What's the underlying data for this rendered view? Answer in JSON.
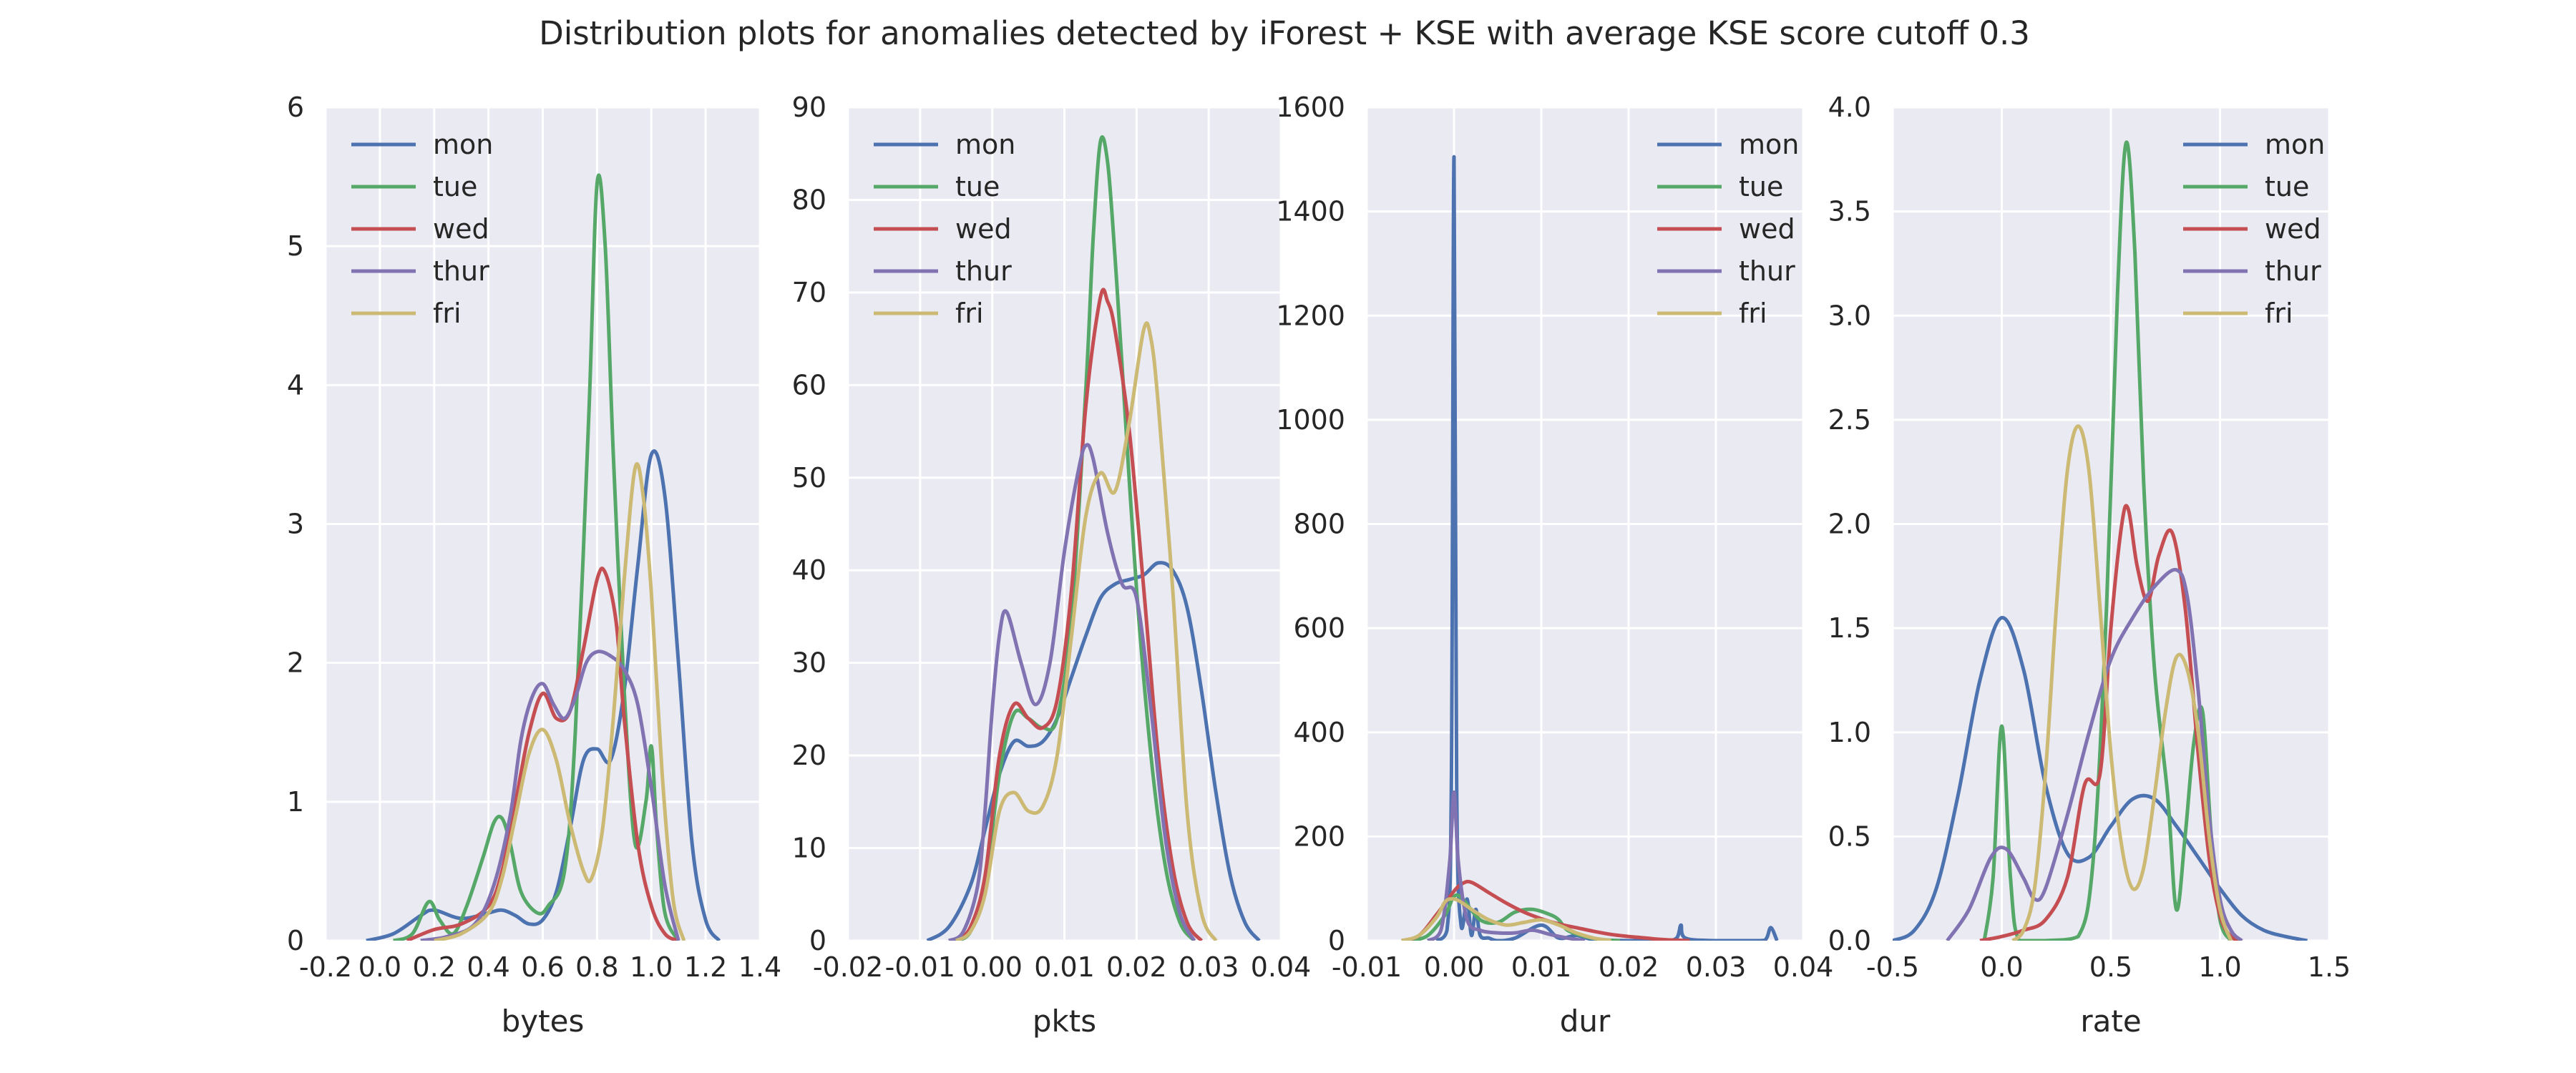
{
  "title": "Distribution plots for anomalies detected by iForest + KSE with average KSE score cutoff 0.3",
  "colors": {
    "mon": "#4c72b0",
    "tue": "#55a868",
    "wed": "#c44e52",
    "thur": "#8172b2",
    "fri": "#ccb974",
    "panel_bg": "#eaeaf2",
    "grid": "#ffffff"
  },
  "chart_data": [
    {
      "type": "line",
      "xlabel": "bytes",
      "ylabel": "",
      "xlim": [
        -0.2,
        1.4
      ],
      "ylim": [
        0,
        6
      ],
      "xticks": [
        "-0.2",
        "0.0",
        "0.2",
        "0.4",
        "0.6",
        "0.8",
        "1.0",
        "1.2",
        "1.4"
      ],
      "yticks": [
        "0",
        "1",
        "2",
        "3",
        "4",
        "5",
        "6"
      ],
      "grid": true,
      "legend": "upper-left",
      "series": [
        {
          "name": "mon",
          "x": [
            -0.05,
            0.05,
            0.15,
            0.2,
            0.3,
            0.4,
            0.45,
            0.5,
            0.55,
            0.6,
            0.65,
            0.7,
            0.75,
            0.8,
            0.85,
            0.9,
            0.95,
            1.0,
            1.05,
            1.1,
            1.15,
            1.2,
            1.25
          ],
          "y": [
            0,
            0.05,
            0.18,
            0.22,
            0.16,
            0.2,
            0.22,
            0.18,
            0.12,
            0.15,
            0.35,
            0.8,
            1.3,
            1.38,
            1.3,
            1.8,
            2.7,
            3.5,
            3.2,
            2.0,
            0.7,
            0.15,
            0
          ]
        },
        {
          "name": "tue",
          "x": [
            0.05,
            0.12,
            0.18,
            0.22,
            0.27,
            0.32,
            0.38,
            0.42,
            0.45,
            0.48,
            0.52,
            0.58,
            0.62,
            0.68,
            0.72,
            0.77,
            0.8,
            0.83,
            0.86,
            0.9,
            0.94,
            0.98,
            1.0,
            1.02,
            1.05,
            1.1
          ],
          "y": [
            0,
            0.05,
            0.28,
            0.15,
            0.05,
            0.25,
            0.6,
            0.85,
            0.88,
            0.7,
            0.35,
            0.2,
            0.25,
            0.5,
            1.5,
            3.8,
            5.45,
            5.0,
            3.5,
            1.8,
            0.7,
            1.0,
            1.4,
            0.8,
            0.2,
            0
          ]
        },
        {
          "name": "wed",
          "x": [
            0.1,
            0.2,
            0.3,
            0.4,
            0.45,
            0.5,
            0.55,
            0.6,
            0.65,
            0.7,
            0.75,
            0.8,
            0.83,
            0.87,
            0.9,
            0.95,
            1.0,
            1.05,
            1.1
          ],
          "y": [
            0,
            0.08,
            0.12,
            0.25,
            0.5,
            1.0,
            1.5,
            1.78,
            1.6,
            1.65,
            2.1,
            2.6,
            2.65,
            2.3,
            1.6,
            0.7,
            0.25,
            0.05,
            0
          ]
        },
        {
          "name": "thur",
          "x": [
            0.15,
            0.25,
            0.35,
            0.42,
            0.48,
            0.52,
            0.56,
            0.6,
            0.64,
            0.68,
            0.72,
            0.76,
            0.8,
            0.85,
            0.9,
            0.95,
            1.0,
            1.05,
            1.1
          ],
          "y": [
            0,
            0.03,
            0.12,
            0.4,
            0.9,
            1.45,
            1.75,
            1.85,
            1.7,
            1.6,
            1.75,
            2.0,
            2.08,
            2.05,
            1.95,
            1.7,
            1.1,
            0.4,
            0
          ]
        },
        {
          "name": "fri",
          "x": [
            0.2,
            0.3,
            0.4,
            0.45,
            0.5,
            0.55,
            0.6,
            0.65,
            0.7,
            0.75,
            0.78,
            0.82,
            0.86,
            0.9,
            0.94,
            0.97,
            1.0,
            1.04,
            1.08,
            1.12
          ],
          "y": [
            0,
            0.05,
            0.2,
            0.45,
            0.9,
            1.35,
            1.52,
            1.3,
            0.85,
            0.5,
            0.45,
            0.8,
            1.6,
            2.6,
            3.4,
            3.2,
            2.5,
            1.2,
            0.3,
            0
          ]
        }
      ]
    },
    {
      "type": "line",
      "xlabel": "pkts",
      "ylabel": "",
      "xlim": [
        -0.02,
        0.04
      ],
      "ylim": [
        0,
        90
      ],
      "xticks": [
        "-0.02",
        "-0.01",
        "0.00",
        "0.01",
        "0.02",
        "0.03",
        "0.04"
      ],
      "yticks": [
        "0",
        "10",
        "20",
        "30",
        "40",
        "50",
        "60",
        "70",
        "80",
        "90"
      ],
      "grid": true,
      "legend": "upper-left",
      "series": [
        {
          "name": "mon",
          "x": [
            -0.009,
            -0.006,
            -0.003,
            -0.001,
            0.001,
            0.003,
            0.005,
            0.007,
            0.009,
            0.011,
            0.013,
            0.015,
            0.017,
            0.019,
            0.021,
            0.023,
            0.025,
            0.027,
            0.029,
            0.031,
            0.033,
            0.035,
            0.037
          ],
          "y": [
            0,
            1.5,
            6,
            12,
            18,
            21.5,
            21,
            21.5,
            24,
            28.5,
            33,
            37,
            38.5,
            39,
            39.5,
            40.8,
            40,
            36,
            27,
            16,
            7,
            2,
            0
          ]
        },
        {
          "name": "tue",
          "x": [
            -0.005,
            -0.003,
            -0.001,
            0.001,
            0.003,
            0.005,
            0.007,
            0.009,
            0.011,
            0.013,
            0.014,
            0.015,
            0.016,
            0.017,
            0.018,
            0.02,
            0.022,
            0.024,
            0.026,
            0.028
          ],
          "y": [
            0,
            1,
            6,
            18,
            24.5,
            24,
            23,
            24,
            35,
            60,
            76,
            86.3,
            84,
            74,
            62,
            38,
            20,
            8,
            2,
            0
          ]
        },
        {
          "name": "wed",
          "x": [
            -0.005,
            -0.003,
            -0.001,
            0.001,
            0.003,
            0.005,
            0.007,
            0.009,
            0.011,
            0.013,
            0.015,
            0.016,
            0.017,
            0.019,
            0.021,
            0.023,
            0.025,
            0.027,
            0.029
          ],
          "y": [
            0,
            1.5,
            7,
            20,
            25.5,
            24,
            23,
            26,
            38,
            58,
            69.5,
            69,
            66,
            55,
            38,
            20,
            8,
            2,
            0
          ]
        },
        {
          "name": "thur",
          "x": [
            -0.006,
            -0.004,
            -0.002,
            -0.001,
            0.0,
            0.001,
            0.002,
            0.004,
            0.006,
            0.008,
            0.01,
            0.012,
            0.013,
            0.014,
            0.016,
            0.018,
            0.02,
            0.022,
            0.024,
            0.026,
            0.028
          ],
          "y": [
            0,
            1,
            6,
            14,
            25,
            33,
            35.5,
            30,
            25.5,
            30,
            42,
            51,
            53.5,
            52,
            44,
            38.5,
            37,
            25,
            11,
            3,
            0
          ]
        },
        {
          "name": "fri",
          "x": [
            -0.005,
            -0.003,
            -0.001,
            0.001,
            0.003,
            0.005,
            0.007,
            0.009,
            0.011,
            0.013,
            0.015,
            0.017,
            0.019,
            0.021,
            0.022,
            0.023,
            0.025,
            0.027,
            0.029,
            0.031
          ],
          "y": [
            0,
            1,
            5,
            14,
            16,
            14,
            14.5,
            20,
            33,
            46,
            50.5,
            48.5,
            56,
            66,
            65,
            58,
            38,
            14,
            3,
            0
          ]
        }
      ]
    },
    {
      "type": "line",
      "xlabel": "dur",
      "ylabel": "",
      "xlim": [
        -0.01,
        0.04
      ],
      "ylim": [
        0,
        1600
      ],
      "xticks": [
        "-0.01",
        "0.00",
        "0.01",
        "0.02",
        "0.03",
        "0.04"
      ],
      "yticks": [
        "0",
        "200",
        "400",
        "600",
        "800",
        "1000",
        "1200",
        "1400",
        "1600"
      ],
      "grid": true,
      "legend": "upper-right",
      "series": [
        {
          "name": "mon",
          "x": [
            -0.002,
            -0.0008,
            -0.0003,
            0.0,
            0.0003,
            0.0008,
            0.0015,
            0.002,
            0.0025,
            0.003,
            0.004,
            0.005,
            0.007,
            0.01,
            0.012,
            0.014,
            0.016,
            0.02,
            0.024,
            0.0255,
            0.026,
            0.0265,
            0.03,
            0.035,
            0.0358,
            0.0363,
            0.037
          ],
          "y": [
            0,
            20,
            300,
            1505,
            300,
            30,
            80,
            10,
            60,
            10,
            5,
            0,
            5,
            30,
            5,
            10,
            2,
            0,
            0,
            5,
            30,
            5,
            0,
            0,
            5,
            25,
            0
          ]
        },
        {
          "name": "tue",
          "x": [
            -0.005,
            -0.003,
            -0.001,
            0.0,
            0.001,
            0.003,
            0.005,
            0.007,
            0.009,
            0.011,
            0.012,
            0.013,
            0.015,
            0.017,
            0.019
          ],
          "y": [
            0,
            10,
            50,
            85,
            80,
            40,
            35,
            55,
            60,
            50,
            40,
            20,
            8,
            2,
            0
          ]
        },
        {
          "name": "wed",
          "x": [
            -0.006,
            -0.004,
            -0.002,
            0.0,
            0.001,
            0.002,
            0.004,
            0.006,
            0.008,
            0.01,
            0.012,
            0.014,
            0.016,
            0.018,
            0.02,
            0.022,
            0.024,
            0.027
          ],
          "y": [
            0,
            10,
            50,
            95,
            110,
            112,
            92,
            72,
            55,
            42,
            32,
            25,
            18,
            12,
            8,
            5,
            2,
            0
          ]
        },
        {
          "name": "thur",
          "x": [
            -0.003,
            -0.0015,
            -0.0005,
            0.0,
            0.0005,
            0.0015,
            0.003,
            0.005,
            0.007,
            0.009,
            0.011,
            0.013,
            0.015
          ],
          "y": [
            0,
            20,
            150,
            285,
            150,
            40,
            20,
            15,
            15,
            20,
            12,
            5,
            0
          ]
        },
        {
          "name": "fri",
          "x": [
            -0.006,
            -0.004,
            -0.002,
            -0.001,
            0.0,
            0.001,
            0.002,
            0.004,
            0.006,
            0.008,
            0.01,
            0.012,
            0.014,
            0.016,
            0.018
          ],
          "y": [
            0,
            10,
            45,
            75,
            80,
            72,
            60,
            40,
            30,
            35,
            40,
            30,
            15,
            5,
            0
          ]
        }
      ]
    },
    {
      "type": "line",
      "xlabel": "rate",
      "ylabel": "",
      "xlim": [
        -0.5,
        1.5
      ],
      "ylim": [
        0,
        4.0
      ],
      "xticks": [
        "-0.5",
        "0.0",
        "0.5",
        "1.0",
        "1.5"
      ],
      "yticks": [
        "0.0",
        "0.5",
        "1.0",
        "1.5",
        "2.0",
        "2.5",
        "3.0",
        "3.5",
        "4.0"
      ],
      "grid": true,
      "legend": "upper-right",
      "series": [
        {
          "name": "mon",
          "x": [
            -0.5,
            -0.4,
            -0.3,
            -0.2,
            -0.1,
            0.0,
            0.1,
            0.2,
            0.3,
            0.4,
            0.5,
            0.6,
            0.7,
            0.8,
            0.9,
            1.0,
            1.1,
            1.2,
            1.3,
            1.4
          ],
          "y": [
            0,
            0.05,
            0.25,
            0.7,
            1.25,
            1.55,
            1.3,
            0.75,
            0.42,
            0.4,
            0.55,
            0.68,
            0.68,
            0.55,
            0.4,
            0.25,
            0.12,
            0.05,
            0.02,
            0
          ]
        },
        {
          "name": "tue",
          "x": [
            -0.08,
            -0.04,
            0.0,
            0.04,
            0.08,
            0.2,
            0.35,
            0.42,
            0.48,
            0.53,
            0.57,
            0.61,
            0.65,
            0.7,
            0.76,
            0.8,
            0.84,
            0.88,
            0.92,
            0.96,
            1.0,
            1.05
          ],
          "y": [
            0,
            0.3,
            1.03,
            0.3,
            0,
            0,
            0.02,
            0.4,
            1.6,
            3.1,
            3.83,
            3.3,
            2.2,
            1.3,
            0.7,
            0.15,
            0.5,
            0.95,
            1.1,
            0.5,
            0.1,
            0
          ]
        },
        {
          "name": "wed",
          "x": [
            -0.1,
            0.0,
            0.1,
            0.2,
            0.3,
            0.38,
            0.45,
            0.5,
            0.55,
            0.58,
            0.62,
            0.67,
            0.72,
            0.78,
            0.84,
            0.9,
            0.95,
            1.0,
            1.05,
            1.1
          ],
          "y": [
            0,
            0.02,
            0.05,
            0.1,
            0.3,
            0.75,
            0.8,
            1.5,
            2.0,
            2.07,
            1.8,
            1.63,
            1.85,
            1.96,
            1.6,
            0.9,
            0.4,
            0.12,
            0.02,
            0
          ]
        },
        {
          "name": "thur",
          "x": [
            -0.25,
            -0.15,
            -0.05,
            0.02,
            0.1,
            0.15,
            0.2,
            0.3,
            0.4,
            0.5,
            0.6,
            0.7,
            0.8,
            0.85,
            0.9,
            0.95,
            1.0,
            1.05,
            1.1
          ],
          "y": [
            0,
            0.15,
            0.4,
            0.44,
            0.3,
            0.2,
            0.25,
            0.6,
            1.0,
            1.35,
            1.55,
            1.7,
            1.78,
            1.65,
            1.2,
            0.6,
            0.2,
            0.05,
            0
          ]
        },
        {
          "name": "fri",
          "x": [
            0.05,
            0.1,
            0.15,
            0.2,
            0.25,
            0.3,
            0.35,
            0.4,
            0.45,
            0.5,
            0.55,
            0.6,
            0.65,
            0.7,
            0.75,
            0.8,
            0.85,
            0.9,
            0.95,
            1.0,
            1.05
          ],
          "y": [
            0,
            0.05,
            0.25,
            0.8,
            1.6,
            2.25,
            2.47,
            2.25,
            1.6,
            0.9,
            0.45,
            0.25,
            0.35,
            0.7,
            1.1,
            1.36,
            1.3,
            1.0,
            0.5,
            0.15,
            0
          ]
        }
      ]
    }
  ]
}
